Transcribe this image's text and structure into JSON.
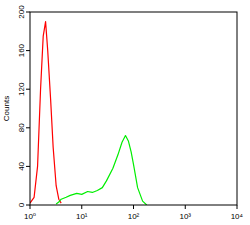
{
  "chart_data": {
    "type": "line",
    "log": "x",
    "y_label": "Counts",
    "x": [
      1,
      1.2,
      1.4,
      1.6,
      1.8,
      2,
      2.2,
      2.5,
      2.8,
      3.2,
      3.6,
      4,
      5,
      6,
      8,
      10,
      13,
      16,
      20,
      25,
      30,
      40,
      50,
      60,
      70,
      80,
      90,
      100,
      120,
      150,
      180
    ],
    "series": [
      {
        "color": "#ff0000",
        "values": [
          2,
          8,
          40,
          120,
          175,
          190,
          160,
          110,
          60,
          20,
          6,
          2,
          null,
          null,
          null,
          null,
          null,
          null,
          null,
          null,
          null,
          null,
          null,
          null,
          null,
          null,
          null,
          null,
          null,
          null,
          null
        ]
      },
      {
        "color": "#00ee00",
        "values": [
          null,
          null,
          null,
          null,
          null,
          null,
          null,
          null,
          null,
          1,
          3,
          6,
          8,
          10,
          12,
          11,
          14,
          13,
          15,
          18,
          25,
          38,
          52,
          65,
          72,
          66,
          55,
          42,
          18,
          4,
          0
        ]
      }
    ],
    "xlim": [
      1,
      10000
    ],
    "xticks": [
      {
        "value": 1,
        "label": "10⁰"
      },
      {
        "value": 10,
        "label": "10¹"
      },
      {
        "value": 100,
        "label": "10²"
      },
      {
        "value": 1000,
        "label": "10³"
      },
      {
        "value": 10000,
        "label": "10⁴"
      }
    ],
    "ylim": [
      0,
      200
    ],
    "yticks": [
      0,
      40,
      80,
      120,
      160,
      200
    ]
  }
}
